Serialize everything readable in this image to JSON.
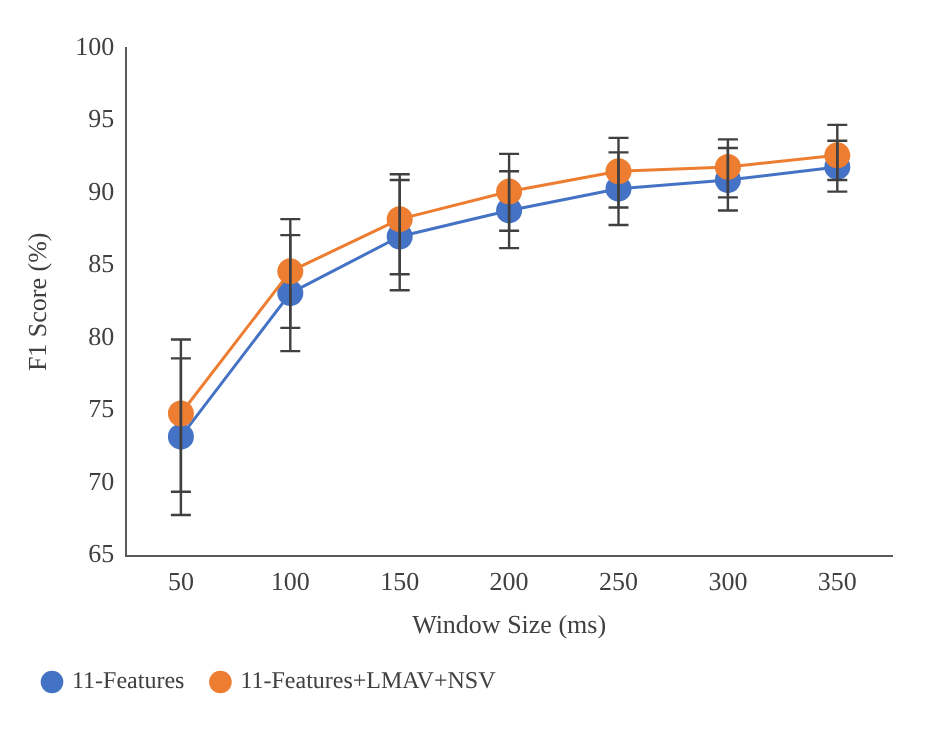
{
  "chart_data": {
    "type": "line",
    "xlabel": "Window Size (ms)",
    "ylabel": "F1 Score (%)",
    "categories": [
      "50",
      "100",
      "150",
      "200",
      "250",
      "300",
      "350"
    ],
    "series": [
      {
        "name": "11-Features",
        "color": "#4472c4",
        "values": [
          73.2,
          83.1,
          87.0,
          88.8,
          90.3,
          90.9,
          91.8
        ],
        "errors": [
          [
            67.8,
            78.6
          ],
          [
            79.1,
            87.1
          ],
          [
            83.3,
            90.9
          ],
          [
            86.2,
            91.5
          ],
          [
            87.8,
            92.8
          ],
          [
            88.8,
            93.1
          ],
          [
            90.1,
            93.6
          ]
        ]
      },
      {
        "name": "11-Features+LMAV+NSV",
        "color": "#ed7d31",
        "values": [
          74.8,
          84.6,
          88.2,
          90.1,
          91.5,
          91.8,
          92.6
        ],
        "errors": [
          [
            69.4,
            79.9
          ],
          [
            80.7,
            88.2
          ],
          [
            84.4,
            91.3
          ],
          [
            87.4,
            92.7
          ],
          [
            89.0,
            93.8
          ],
          [
            89.7,
            93.7
          ],
          [
            90.9,
            94.7
          ]
        ]
      }
    ],
    "ylim": [
      65,
      100
    ],
    "yticks": [
      65,
      70,
      75,
      80,
      85,
      90,
      95,
      100
    ],
    "grid": false,
    "legend": "bottom left",
    "marker": "circle",
    "line_style": "solid"
  }
}
